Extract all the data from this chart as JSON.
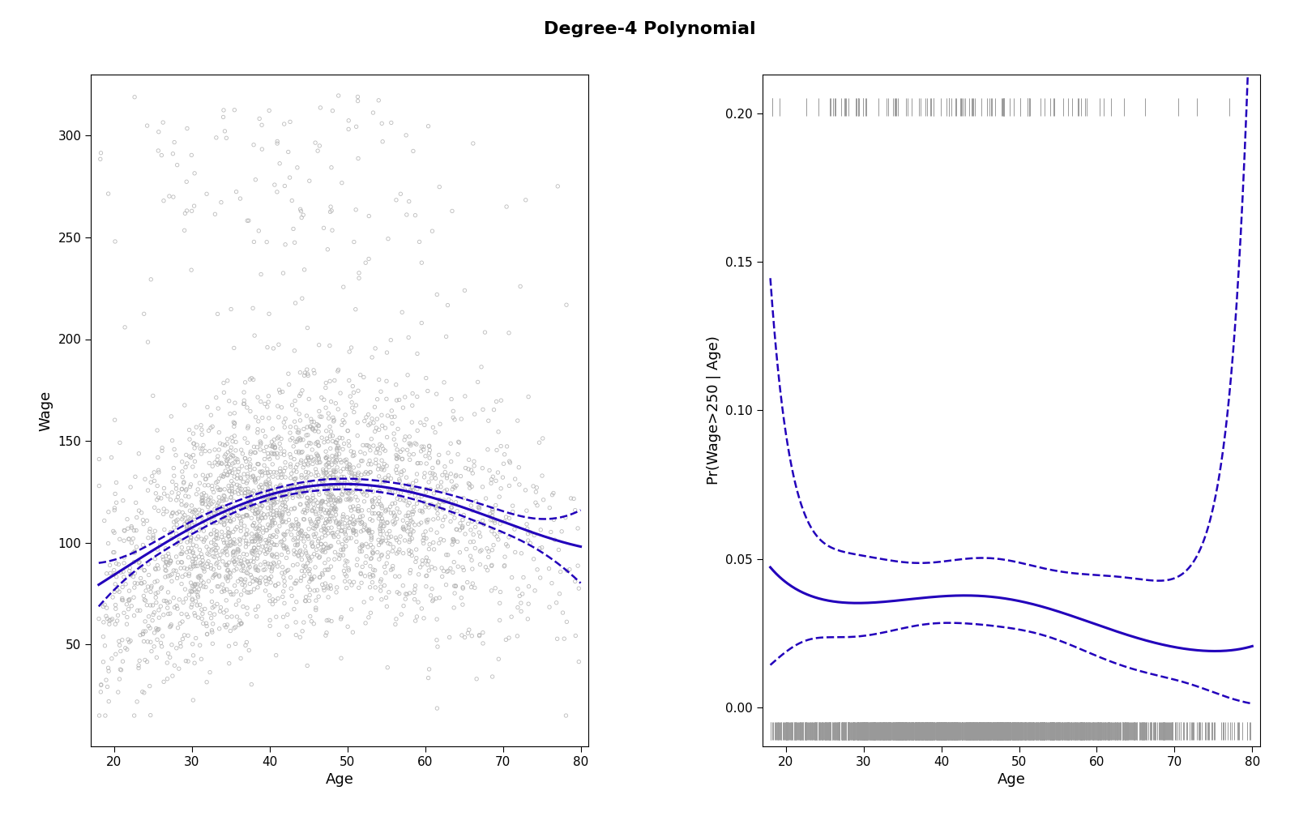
{
  "title": "Degree-4 Polynomial",
  "title_fontsize": 16,
  "title_fontweight": "bold",
  "left_xlabel": "Age",
  "left_ylabel": "Wage",
  "right_xlabel": "Age",
  "right_ylabel": "Pr(Wage>250 | Age)",
  "left_xlim": [
    17,
    81
  ],
  "left_ylim": [
    0,
    330
  ],
  "right_xlim": [
    17,
    81
  ],
  "right_ylim": [
    -0.013,
    0.213
  ],
  "left_xticks": [
    20,
    30,
    40,
    50,
    60,
    70,
    80
  ],
  "left_yticks": [
    50,
    100,
    150,
    200,
    250,
    300
  ],
  "right_xticks": [
    20,
    30,
    40,
    50,
    60,
    70,
    80
  ],
  "right_yticks": [
    0.0,
    0.05,
    0.1,
    0.15,
    0.2
  ],
  "scatter_color": "#b0b0b0",
  "scatter_alpha": 0.7,
  "fit_color": "#2200bb",
  "fit_lw": 2.2,
  "ci_lw": 1.8,
  "ci_linestyle": "--",
  "rug_color": "#999999",
  "random_seed": 12345,
  "n_workers": 3000
}
